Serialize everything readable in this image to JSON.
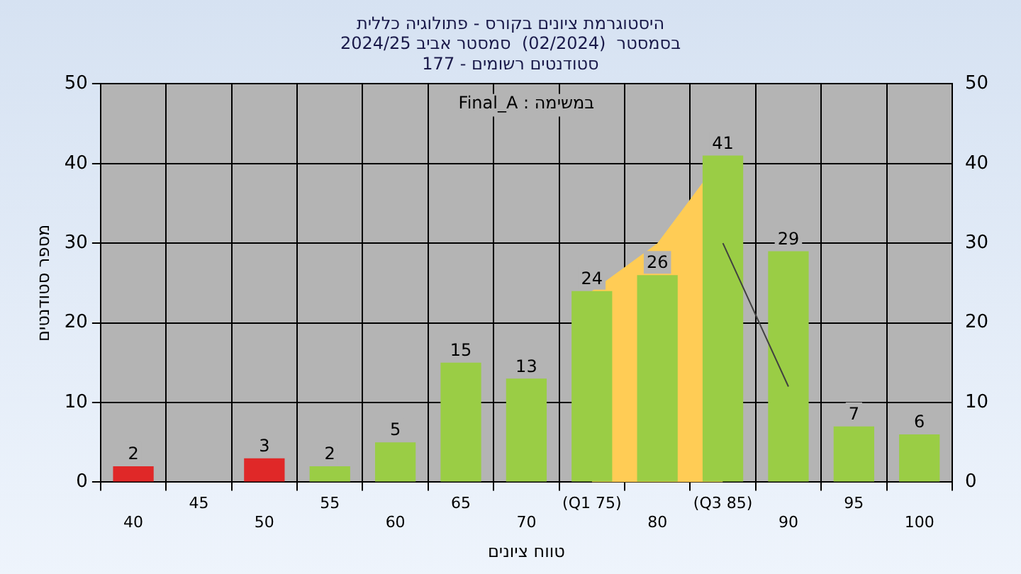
{
  "chart_data": {
    "type": "bar",
    "title": "היסטוגרמת ציונים בקורס - פתולוגיה כללית\nבסמסטר  (02/2024)  סמסטר אביב 2024/25\nסטודנטים רשומים - 177",
    "xlabel": "טווח ציונים",
    "ylabel": "מספר סטודנטים",
    "annotations": [
      "במשימה : Final_A"
    ],
    "categories": [
      "40",
      "45",
      "50",
      "55",
      "60",
      "65",
      "70",
      "(Q1 75)",
      "80",
      "(Q3 85)",
      "90",
      "95",
      "100"
    ],
    "series": [
      {
        "type": "area",
        "color": "#ffcc55",
        "values": [
          null,
          null,
          null,
          null,
          null,
          null,
          null,
          24,
          30,
          41,
          null,
          null,
          null
        ]
      },
      {
        "type": "line",
        "color": "#404040",
        "values": [
          null,
          null,
          null,
          null,
          null,
          null,
          null,
          null,
          null,
          30,
          12,
          null,
          null
        ]
      },
      {
        "colors": [
          "#e02828",
          "#9acd45",
          "#e02828",
          "#9acd45",
          "#9acd45",
          "#9acd45",
          "#9acd45",
          "#9acd45",
          "#9acd45",
          "#9acd45",
          "#9acd45",
          "#9acd45",
          "#9acd45"
        ],
        "values": [
          2,
          null,
          3,
          2,
          5,
          15,
          13,
          24,
          26,
          41,
          29,
          7,
          6
        ],
        "value_labels": [
          "2",
          null,
          "3",
          "2",
          "5",
          "15",
          "13",
          "24",
          "26",
          "41",
          "29",
          "7",
          "6"
        ]
      }
    ],
    "ylim": [
      0,
      50
    ],
    "yticks": [
      0,
      10,
      20,
      30,
      40,
      50
    ],
    "y2lim": [
      0,
      50
    ],
    "y2ticks": [
      0,
      10,
      20,
      30,
      40,
      50
    ],
    "grid": true,
    "legend": false
  }
}
